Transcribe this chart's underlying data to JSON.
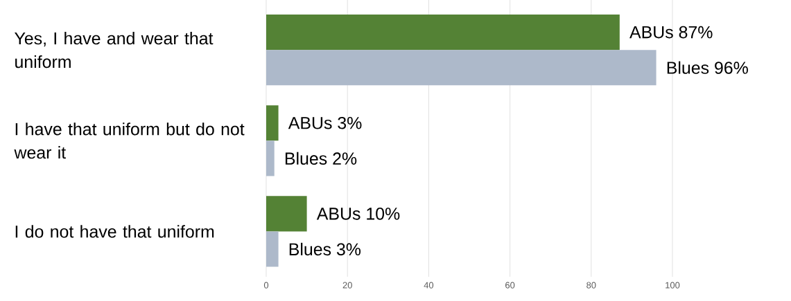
{
  "chart_data": {
    "type": "bar",
    "orientation": "horizontal",
    "categories": [
      "Yes, I have and wear that uniform",
      "I have that uniform but do not wear it",
      "I do not have that uniform"
    ],
    "series": [
      {
        "color": "#548235",
        "values": [
          87,
          3,
          10
        ],
        "value_labels": [
          "ABUs 87%",
          "ABUs 3%",
          "ABUs 10%"
        ]
      },
      {
        "color": "#adb9ca",
        "values": [
          96,
          2,
          3
        ],
        "value_labels": [
          "Blues 96%",
          "Blues 2%",
          "Blues 3%"
        ]
      }
    ],
    "xlim": [
      0,
      100
    ],
    "xticks": [
      0,
      20,
      40,
      60,
      80,
      100
    ],
    "grid": "x"
  }
}
